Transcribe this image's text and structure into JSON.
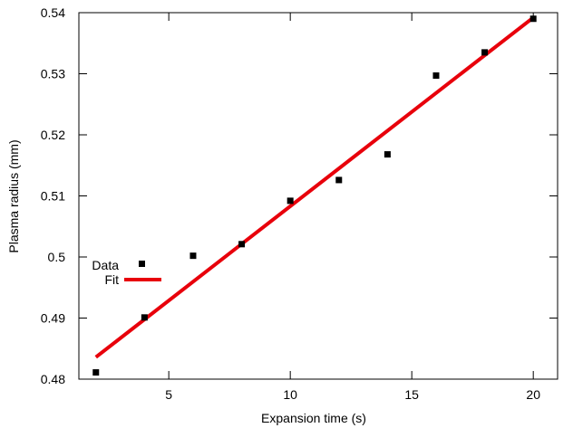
{
  "chart_data": {
    "type": "scatter",
    "title": "",
    "xlabel": "Expansion time (s)",
    "ylabel": "Plasma radius (mm)",
    "xlim": [
      1.3,
      21.0
    ],
    "ylim": [
      0.48,
      0.54
    ],
    "xticks": [
      5,
      10,
      15,
      20
    ],
    "yticks": [
      0.48,
      0.49,
      0.5,
      0.51,
      0.52,
      0.53,
      0.54
    ],
    "ytick_labels": [
      "0.48",
      "0.49",
      "0.5",
      "0.51",
      "0.52",
      "0.53",
      "0.54"
    ],
    "grid": false,
    "legend_position": "left-middle",
    "series": [
      {
        "name": "Data",
        "kind": "points",
        "marker": "square",
        "color": "#000000",
        "x": [
          2,
          4,
          6,
          8,
          10,
          12,
          14,
          16,
          18,
          20
        ],
        "y": [
          0.4811,
          0.4901,
          0.5002,
          0.5021,
          0.5092,
          0.5126,
          0.5168,
          0.5297,
          0.5335,
          0.539
        ]
      },
      {
        "name": "Fit",
        "kind": "line",
        "color": "#e8000b",
        "x": [
          2,
          20
        ],
        "y": [
          0.4836,
          0.5392
        ]
      }
    ]
  }
}
